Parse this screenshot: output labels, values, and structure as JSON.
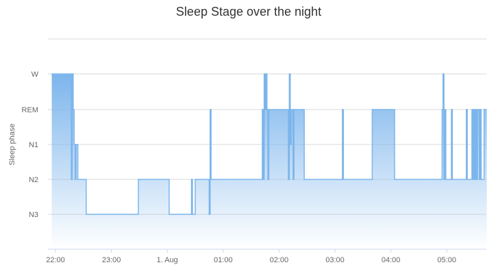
{
  "chart_data": {
    "type": "area",
    "title": "Sleep Stage over the night",
    "ylabel": "Sleep phase",
    "xlabel": "",
    "y_categories": [
      "N3",
      "N2",
      "N1",
      "REM",
      "W"
    ],
    "x_ticks": [
      "22:00",
      "23:00",
      "1. Aug",
      "01:00",
      "02:00",
      "03:00",
      "04:00",
      "05:00"
    ],
    "x_range": [
      "21:56",
      "05:43"
    ],
    "step": true,
    "grid": true,
    "color": "#7cb5ec",
    "series": [
      {
        "x": [
          "21:56",
          "22:17",
          "22:18",
          "22:19",
          "22:20",
          "22:21",
          "22:22",
          "22:24",
          "22:33",
          "23:29",
          "23:30",
          "00:02",
          "00:03",
          "00:26",
          "00:27",
          "00:28",
          "00:30",
          "00:32",
          "00:33",
          "00:45",
          "00:46",
          "00:47",
          "01:42",
          "01:43",
          "01:44",
          "01:45",
          "01:46",
          "01:47",
          "01:48",
          "01:49",
          "02:10",
          "02:11",
          "02:12",
          "02:13",
          "02:15",
          "02:16",
          "02:27",
          "03:08",
          "03:09",
          "03:40",
          "04:04",
          "04:05",
          "04:55",
          "04:56",
          "04:57",
          "04:58",
          "04:59",
          "05:05",
          "05:06",
          "05:21",
          "05:22",
          "05:27",
          "05:28",
          "05:29",
          "05:30",
          "05:31",
          "05:32",
          "05:33",
          "05:35",
          "05:36",
          "05:37",
          "05:40"
        ],
        "y": [
          "W",
          "N2",
          "W",
          "REM",
          "N1",
          "N2",
          "N1",
          "N2",
          "N3",
          "N2",
          "N2",
          "N3",
          "N3",
          "N2",
          "N3",
          "N3",
          "N2",
          "N2",
          "N2",
          "N3",
          "REM",
          "N2",
          "REM",
          "N2",
          "W",
          "REM",
          "W",
          "REM",
          "N2",
          "REM",
          "N2",
          "W",
          "N1",
          "REM",
          "N2",
          "REM",
          "N2",
          "REM",
          "N2",
          "REM",
          "N2",
          "N2",
          "REM",
          "W",
          "N2",
          "REM",
          "N2",
          "REM",
          "N2",
          "REM",
          "N2",
          "REM",
          "N2",
          "REM",
          "N2",
          "REM",
          "N2",
          "REM",
          "N2",
          "REM",
          "N2",
          "REM"
        ]
      }
    ]
  }
}
